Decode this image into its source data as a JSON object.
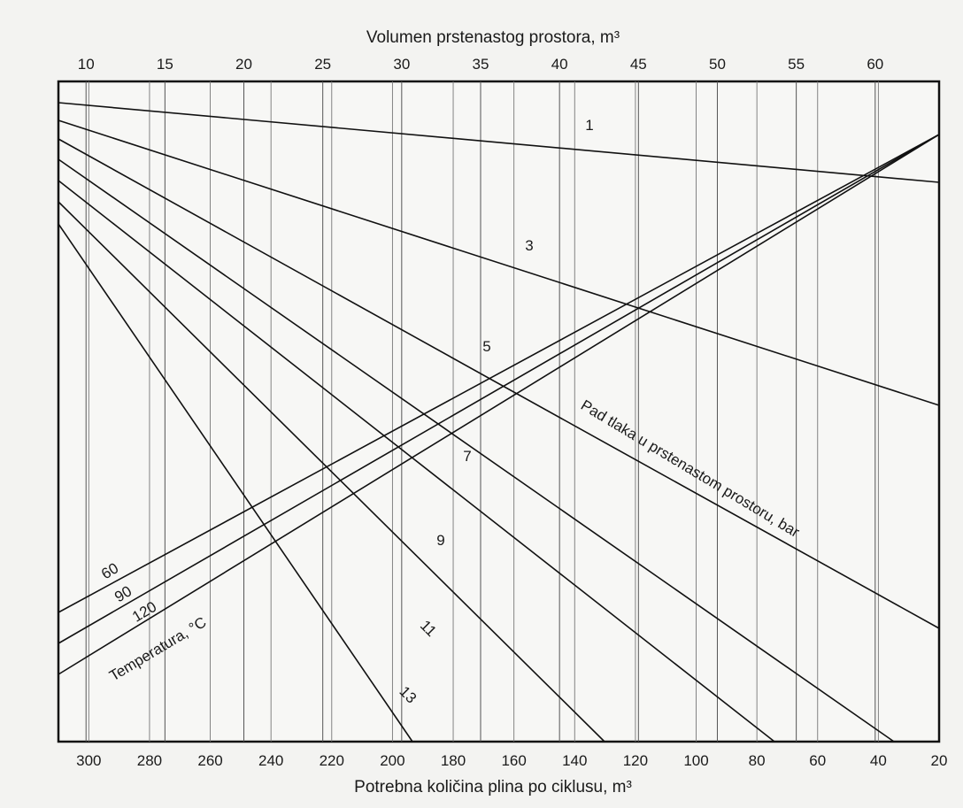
{
  "chart_data": {
    "type": "line",
    "title": "",
    "top_axis_label": "Volumen prstenastog prostora, m³",
    "bottom_axis_label": "Potrebna količina plina po ciklusu, m³",
    "top_axis_range": [
      8.25,
      64.05
    ],
    "top_ticks": [
      "10",
      "15",
      "20",
      "25",
      "30",
      "35",
      "40",
      "45",
      "50",
      "55",
      "60"
    ],
    "bottom_axis_range": [
      310,
      20
    ],
    "bottom_ticks": [
      "300",
      "280",
      "260",
      "240",
      "220",
      "200",
      "180",
      "160",
      "140",
      "120",
      "100",
      "80",
      "60",
      "40",
      "20"
    ],
    "grid": true,
    "y_axis": "nomogram (no printed scale)",
    "pressure_drop_label": "Pad tlaka u prstenastom prostoru, bar",
    "pressure_drop_lines": [
      {
        "name": "1",
        "start_volume": 8.25,
        "end_volume": 64.05
      },
      {
        "name": "3",
        "start_volume": 8.25,
        "end_volume": 64.05
      },
      {
        "name": "5",
        "start_volume": 8.25,
        "end_volume": 64.05
      },
      {
        "name": "7",
        "start_volume": 8.25,
        "end_volume": 60.5
      },
      {
        "name": "9",
        "start_volume": 8.25,
        "end_volume": 52.5
      },
      {
        "name": "11",
        "start_volume": 8.25,
        "end_volume": 42.0
      },
      {
        "name": "13",
        "start_volume": 8.25,
        "end_volume": 33.6
      }
    ],
    "temperature_label": "Temperatura, °C",
    "temperature_lines": [
      {
        "name": "60"
      },
      {
        "name": "90"
      },
      {
        "name": "120"
      }
    ],
    "temperature_lines_converge_at_volume": 64.05
  }
}
